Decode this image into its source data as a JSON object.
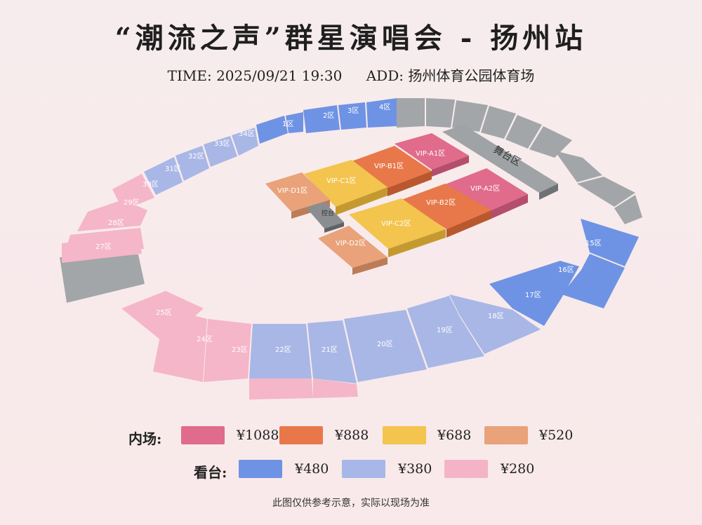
{
  "title": "“潮流之声”群星演唱会 - 扬州站",
  "time": "TIME: 2025/09/21 19:30",
  "address": "ADD: 扬州体育公园体育场",
  "colors": {
    "p1088": "#e06b8b",
    "p888": "#e8784a",
    "p688": "#f3c44e",
    "p520": "#e9a27a",
    "p480": "#6f93e4",
    "p380": "#a6b7e8",
    "p280": "#f5b3c8",
    "gray": "#9fa3a6"
  },
  "stage_label": "舞台区",
  "booth_label": "控台",
  "vip_zones": [
    "VIP-A1区",
    "VIP-A2区",
    "VIP-B1区",
    "VIP-B2区",
    "VIP-C1区",
    "VIP-C2区",
    "VIP-D1区",
    "VIP-D2区"
  ],
  "stand_zones": [
    "1区",
    "2区",
    "3区",
    "4区",
    "15区",
    "16区",
    "17区",
    "18区",
    "19区",
    "20区",
    "21区",
    "22区",
    "23区",
    "24区",
    "25区",
    "27区",
    "28区",
    "29区",
    "30区",
    "31区",
    "32区",
    "33区",
    "34区"
  ],
  "legend": {
    "floor_label": "内场:",
    "floor_prices": [
      "¥1088",
      "¥888",
      "¥688",
      "¥520"
    ],
    "stand_label": "看台:",
    "stand_prices": [
      "¥480",
      "¥380",
      "¥280"
    ]
  },
  "note": "此图仅供参考示意，实际以现场为准"
}
